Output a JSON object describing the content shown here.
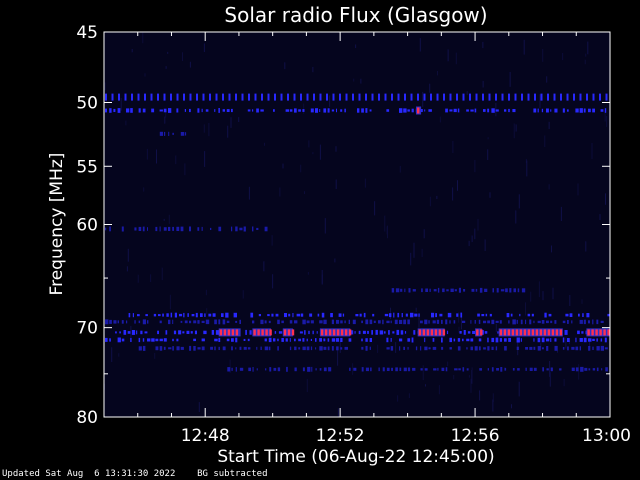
{
  "chart_data": {
    "type": "heatmap",
    "title": "Solar radio Flux (Glasgow)",
    "xlabel": "Start Time (06-Aug-22 12:45:00)",
    "ylabel": "Frequency [MHz]",
    "x_range_minutes": [
      0,
      15
    ],
    "x_ticks": [
      {
        "label": "12:48",
        "minutes": 3
      },
      {
        "label": "12:52",
        "minutes": 7
      },
      {
        "label": "12:56",
        "minutes": 11
      },
      {
        "label": "13:00",
        "minutes": 15
      }
    ],
    "y_range_mhz": [
      45,
      80
    ],
    "y_ticks": [
      {
        "label": "45",
        "mhz": 45
      },
      {
        "label": "50",
        "mhz": 50
      },
      {
        "label": "55",
        "mhz": 55
      },
      {
        "label": "60",
        "mhz": 60
      },
      {
        "label": "70",
        "mhz": 70
      },
      {
        "label": "80",
        "mhz": 80
      }
    ],
    "background_color": "#05051e",
    "colors": {
      "weak": "#1a1aa8",
      "medium": "#2828ff",
      "strong": "#ff3050"
    },
    "features": [
      {
        "freq_mhz": 49.6,
        "t_start": 0,
        "t_end": 15,
        "style": "dashed",
        "intensity": "medium"
      },
      {
        "freq_mhz": 50.6,
        "t_start": 0,
        "t_end": 15,
        "style": "dotted",
        "intensity": "medium"
      },
      {
        "freq_mhz": 52.4,
        "t_start": 1.5,
        "t_end": 2.6,
        "style": "dotted",
        "intensity": "weak"
      },
      {
        "freq_mhz": 60.4,
        "t_start": 0,
        "t_end": 4.8,
        "style": "dotted",
        "intensity": "weak"
      },
      {
        "freq_mhz": 66.2,
        "t_start": 8.5,
        "t_end": 12.5,
        "style": "dotted",
        "intensity": "weak"
      },
      {
        "freq_mhz": 68.7,
        "t_start": 0.7,
        "t_end": 15,
        "style": "dotted",
        "intensity": "medium"
      },
      {
        "freq_mhz": 69.4,
        "t_start": 0,
        "t_end": 15,
        "style": "dotted",
        "intensity": "weak"
      },
      {
        "freq_mhz": 70.5,
        "t_start": 0.3,
        "t_end": 15,
        "style": "dotted",
        "intensity": "medium"
      },
      {
        "freq_mhz": 71.3,
        "t_start": 0,
        "t_end": 15,
        "style": "dotted",
        "intensity": "medium"
      },
      {
        "freq_mhz": 72.2,
        "t_start": 1,
        "t_end": 15,
        "style": "dotted",
        "intensity": "weak"
      },
      {
        "freq_mhz": 74.5,
        "t_start": 3.5,
        "t_end": 15,
        "style": "dotted",
        "intensity": "weak"
      }
    ],
    "strong_segments": [
      {
        "freq_mhz": 50.6,
        "t_start": 9.25,
        "t_end": 9.4
      },
      {
        "freq_mhz": 70.5,
        "t_start": 3.4,
        "t_end": 4.05
      },
      {
        "freq_mhz": 70.5,
        "t_start": 4.4,
        "t_end": 4.95
      },
      {
        "freq_mhz": 70.5,
        "t_start": 5.3,
        "t_end": 5.6
      },
      {
        "freq_mhz": 70.5,
        "t_start": 6.4,
        "t_end": 7.3
      },
      {
        "freq_mhz": 70.5,
        "t_start": 9.3,
        "t_end": 10.1
      },
      {
        "freq_mhz": 70.5,
        "t_start": 11.0,
        "t_end": 11.2
      },
      {
        "freq_mhz": 70.5,
        "t_start": 11.7,
        "t_end": 13.6
      },
      {
        "freq_mhz": 70.5,
        "t_start": 14.3,
        "t_end": 15.0
      }
    ]
  },
  "footer": {
    "updated": "Updated Sat Aug  6 13:31:30 2022",
    "note": "BG subtracted"
  }
}
